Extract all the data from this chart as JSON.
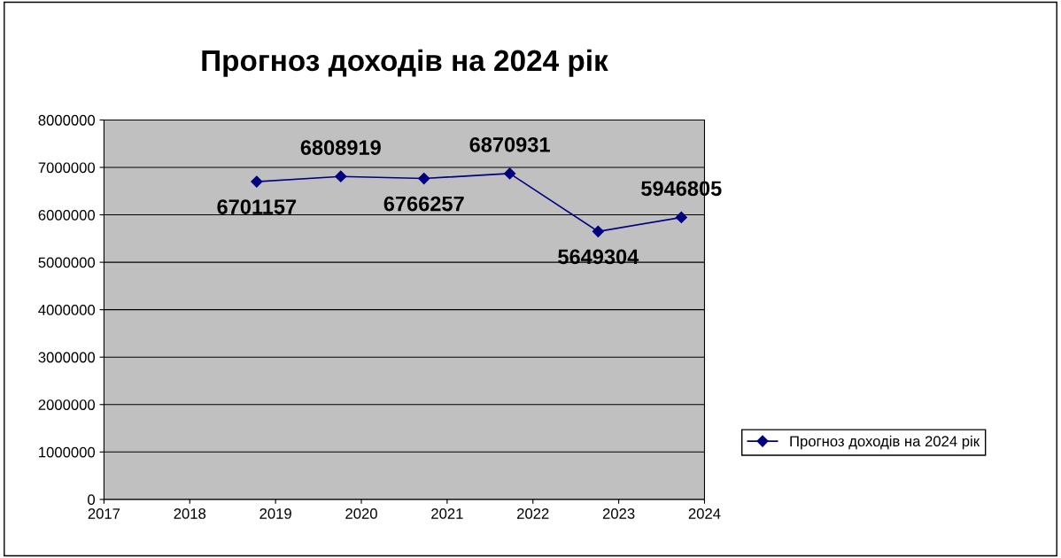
{
  "chart_data": {
    "type": "line",
    "title": "Прогноз доходів на 2024 рік",
    "x": [
      2018.78,
      2019.76,
      2020.73,
      2021.73,
      2022.76,
      2023.73
    ],
    "series": [
      {
        "name": "Прогноз доходів на 2024 рік",
        "color": "#000080",
        "values": [
          6701157,
          6808919,
          6766257,
          6870931,
          5649304,
          5946805
        ]
      }
    ],
    "xlim": [
      2017,
      2024
    ],
    "xticks": [
      2017,
      2018,
      2019,
      2020,
      2021,
      2022,
      2023,
      2024
    ],
    "ylim": [
      0,
      8000000
    ],
    "yticks": [
      0,
      1000000,
      2000000,
      3000000,
      4000000,
      5000000,
      6000000,
      7000000,
      8000000
    ],
    "grid": "y",
    "legend": "right",
    "marker": "diamond",
    "line_style": "solid",
    "data_labels": true
  }
}
